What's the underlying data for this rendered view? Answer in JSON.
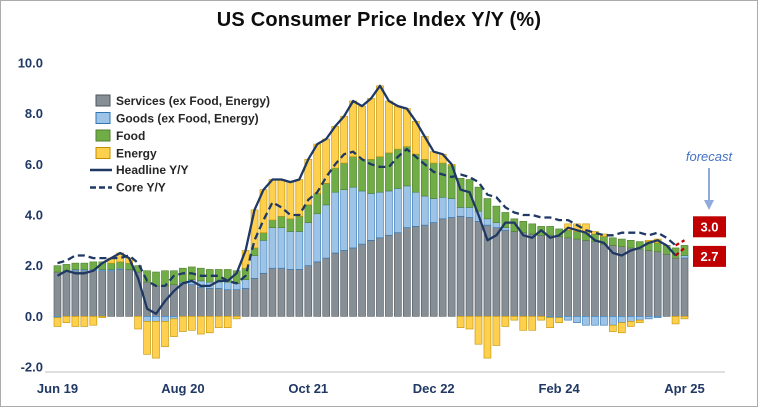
{
  "title": "US Consumer Price Index Y/Y (%)",
  "chart_data": {
    "type": "bar",
    "stacked": true,
    "title": "US Consumer Price Index Y/Y (%)",
    "xlabel": "",
    "ylabel": "",
    "ylim": [
      -2.0,
      10.0
    ],
    "y_ticks": [
      10.0,
      8.0,
      6.0,
      4.0,
      2.0,
      0.0,
      -2.0
    ],
    "grid": false,
    "legend_position": "upper-left-inside",
    "x": [
      "Jun 19",
      "Jul 19",
      "Aug 19",
      "Sep 19",
      "Oct 19",
      "Nov 19",
      "Dec 19",
      "Jan 20",
      "Feb 20",
      "Mar 20",
      "Apr 20",
      "May 20",
      "Jun 20",
      "Jul 20",
      "Aug 20",
      "Sep 20",
      "Oct 20",
      "Nov 20",
      "Dec 20",
      "Jan 21",
      "Feb 21",
      "Mar 21",
      "Apr 21",
      "May 21",
      "Jun 21",
      "Jul 21",
      "Aug 21",
      "Sep 21",
      "Oct 21",
      "Nov 21",
      "Dec 21",
      "Jan 22",
      "Feb 22",
      "Mar 22",
      "Apr 22",
      "May 22",
      "Jun 22",
      "Jul 22",
      "Aug 22",
      "Sep 22",
      "Oct 22",
      "Nov 22",
      "Dec 22",
      "Jan 23",
      "Feb 23",
      "Mar 23",
      "Apr 23",
      "May 23",
      "Jun 23",
      "Jul 23",
      "Aug 23",
      "Sep 23",
      "Oct 23",
      "Nov 23",
      "Dec 23",
      "Jan 24",
      "Feb 24",
      "Mar 24",
      "Apr 24",
      "May 24",
      "Jun 24",
      "Jul 24",
      "Aug 24",
      "Sep 24",
      "Oct 24",
      "Nov 24",
      "Dec 24",
      "Jan 25",
      "Feb 25",
      "Mar 25",
      "Apr 25"
    ],
    "x_tick_labels": [
      "Jun 19",
      "Aug 20",
      "Oct 21",
      "Dec 22",
      "Feb 24",
      "Apr 25"
    ],
    "x_tick_indices": [
      0,
      14,
      28,
      42,
      56,
      70
    ],
    "bar_series": [
      {
        "name": "Services (ex Food, Energy)",
        "color": "#868f96",
        "border": "#50575d",
        "values": [
          1.75,
          1.8,
          1.8,
          1.8,
          1.8,
          1.8,
          1.8,
          1.85,
          1.85,
          1.75,
          1.35,
          1.2,
          1.2,
          1.25,
          1.3,
          1.25,
          1.15,
          1.1,
          1.1,
          1.05,
          1.05,
          1.1,
          1.5,
          1.7,
          1.9,
          1.9,
          1.85,
          1.85,
          2.0,
          2.15,
          2.3,
          2.5,
          2.6,
          2.7,
          2.85,
          3.0,
          3.1,
          3.2,
          3.3,
          3.5,
          3.55,
          3.6,
          3.7,
          3.85,
          3.9,
          3.95,
          3.9,
          3.75,
          3.6,
          3.5,
          3.4,
          3.35,
          3.3,
          3.25,
          3.2,
          3.2,
          3.15,
          3.1,
          3.05,
          3.0,
          2.95,
          2.85,
          2.8,
          2.75,
          2.7,
          2.65,
          2.6,
          2.55,
          2.45,
          2.3,
          2.3
        ]
      },
      {
        "name": "Goods (ex Food, Energy)",
        "color": "#9dc3e6",
        "border": "#2e75b6",
        "values": [
          -0.05,
          0.0,
          0.05,
          0.05,
          0.05,
          0.05,
          0.05,
          0.05,
          0.0,
          0.0,
          -0.2,
          -0.2,
          -0.2,
          -0.1,
          0.05,
          0.2,
          0.25,
          0.25,
          0.25,
          0.3,
          0.25,
          0.35,
          0.9,
          1.3,
          1.6,
          1.6,
          1.5,
          1.5,
          1.7,
          1.9,
          2.1,
          2.4,
          2.4,
          2.4,
          2.1,
          1.85,
          1.8,
          1.75,
          1.75,
          1.65,
          1.35,
          1.15,
          0.95,
          0.85,
          0.75,
          0.35,
          0.4,
          0.4,
          0.25,
          0.2,
          0.1,
          0.0,
          0.0,
          0.0,
          0.0,
          -0.05,
          -0.05,
          -0.15,
          -0.25,
          -0.35,
          -0.35,
          -0.35,
          -0.35,
          -0.25,
          -0.2,
          -0.15,
          -0.1,
          -0.05,
          0.0,
          0.0,
          0.1
        ]
      },
      {
        "name": "Food",
        "color": "#70ad47",
        "border": "#507e32",
        "values": [
          0.25,
          0.25,
          0.25,
          0.25,
          0.3,
          0.3,
          0.25,
          0.25,
          0.25,
          0.25,
          0.45,
          0.55,
          0.6,
          0.55,
          0.55,
          0.5,
          0.5,
          0.5,
          0.5,
          0.5,
          0.5,
          0.45,
          0.3,
          0.3,
          0.3,
          0.45,
          0.5,
          0.6,
          0.7,
          0.8,
          0.85,
          0.95,
          1.05,
          1.2,
          1.25,
          1.35,
          1.4,
          1.5,
          1.55,
          1.55,
          1.5,
          1.45,
          1.4,
          1.35,
          1.3,
          1.15,
          1.1,
          0.95,
          0.8,
          0.65,
          0.6,
          0.5,
          0.45,
          0.4,
          0.35,
          0.35,
          0.3,
          0.3,
          0.3,
          0.3,
          0.3,
          0.3,
          0.3,
          0.3,
          0.3,
          0.3,
          0.35,
          0.35,
          0.35,
          0.4,
          0.4
        ]
      },
      {
        "name": "Energy",
        "color": "#ffd04d",
        "border": "#bf9000",
        "values": [
          -0.35,
          -0.25,
          -0.4,
          -0.4,
          -0.35,
          -0.05,
          0.2,
          0.35,
          0.2,
          -0.5,
          -1.3,
          -1.45,
          -1.0,
          -0.7,
          -0.6,
          -0.55,
          -0.7,
          -0.65,
          -0.45,
          -0.45,
          -0.1,
          0.7,
          1.5,
          1.7,
          1.6,
          1.45,
          1.45,
          1.45,
          1.8,
          1.95,
          1.75,
          1.65,
          1.85,
          2.2,
          2.1,
          2.4,
          2.8,
          2.05,
          1.7,
          1.5,
          1.3,
          0.9,
          0.45,
          0.35,
          0.05,
          -0.45,
          -0.5,
          -1.1,
          -1.65,
          -1.15,
          -0.4,
          -0.15,
          -0.55,
          -0.55,
          -0.15,
          -0.4,
          -0.2,
          0.25,
          0.3,
          0.35,
          0.1,
          0.1,
          -0.25,
          -0.4,
          -0.2,
          -0.1,
          0.05,
          0.15,
          0.0,
          -0.3,
          -0.1
        ]
      }
    ],
    "line_series": [
      {
        "name": "Headline Y/Y",
        "style": "solid",
        "color": "#1f3864",
        "values": [
          1.6,
          1.8,
          1.7,
          1.7,
          1.8,
          2.1,
          2.3,
          2.5,
          2.3,
          1.5,
          0.3,
          0.1,
          0.6,
          1.0,
          1.3,
          1.4,
          1.2,
          1.2,
          1.4,
          1.4,
          1.7,
          2.6,
          4.2,
          5.0,
          5.4,
          5.4,
          5.3,
          5.4,
          6.2,
          6.8,
          7.0,
          7.5,
          7.9,
          8.5,
          8.3,
          8.6,
          9.1,
          8.5,
          8.3,
          8.2,
          7.7,
          7.1,
          6.5,
          6.4,
          6.0,
          5.0,
          4.9,
          4.0,
          3.0,
          3.2,
          3.7,
          3.7,
          3.2,
          3.1,
          3.4,
          3.1,
          3.2,
          3.5,
          3.4,
          3.3,
          3.0,
          2.9,
          2.5,
          2.4,
          2.6,
          2.7,
          2.9,
          3.0,
          2.8,
          2.4,
          2.7
        ]
      },
      {
        "name": "Core Y/Y",
        "style": "dashed",
        "color": "#1f3864",
        "values": [
          2.1,
          2.2,
          2.4,
          2.4,
          2.3,
          2.3,
          2.3,
          2.3,
          2.4,
          2.1,
          1.4,
          1.2,
          1.2,
          1.6,
          1.7,
          1.7,
          1.6,
          1.6,
          1.6,
          1.4,
          1.3,
          1.6,
          3.0,
          3.8,
          4.5,
          4.3,
          4.0,
          4.0,
          4.6,
          4.9,
          5.5,
          6.0,
          6.4,
          6.5,
          6.2,
          6.0,
          5.9,
          5.9,
          6.3,
          6.6,
          6.3,
          6.0,
          5.7,
          5.6,
          5.5,
          5.6,
          5.5,
          5.3,
          4.8,
          4.7,
          4.3,
          4.1,
          4.0,
          4.0,
          3.9,
          3.9,
          3.8,
          3.8,
          3.6,
          3.4,
          3.3,
          3.2,
          3.2,
          3.3,
          3.3,
          3.3,
          3.2,
          3.3,
          3.1,
          2.8,
          3.0
        ]
      }
    ],
    "forecast": {
      "annotation": "forecast",
      "annotation_color": "#4472c4",
      "arrow_color": "#8faadc",
      "forecast_line_color": "#c00000",
      "box_color": "#c00000",
      "core_label": "3.0",
      "headline_label": "2.7",
      "core_value": 3.0,
      "headline_value": 2.7
    }
  }
}
